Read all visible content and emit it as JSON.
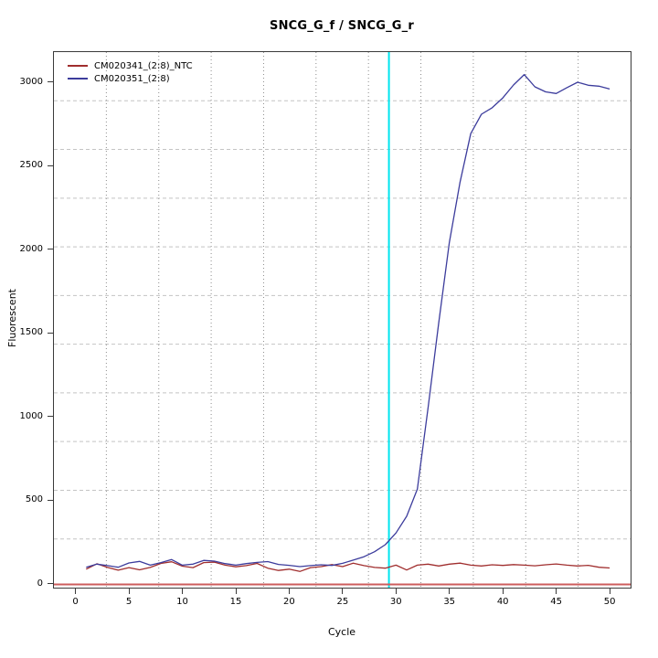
{
  "chart_data": {
    "type": "line",
    "title": "SNCG_G_f / SNCG_G_r",
    "xlabel": "Cycle",
    "ylabel": "Fluorescent",
    "x_ticks": [
      0,
      5,
      10,
      15,
      20,
      25,
      30,
      35,
      40,
      45,
      50
    ],
    "y_ticks": [
      0,
      500,
      1000,
      1500,
      2000,
      2500,
      3000
    ],
    "xlim": [
      -2.02,
      51.96
    ],
    "ylim": [
      -24.6,
      3177.6
    ],
    "grid": {
      "nx": 11,
      "ny": 11,
      "vertical_style": "dotted",
      "horizontal_style": "dashed"
    },
    "legend_position": "top-left",
    "x": [
      1,
      2,
      3,
      4,
      5,
      6,
      7,
      8,
      9,
      10,
      11,
      12,
      13,
      14,
      15,
      16,
      17,
      18,
      19,
      20,
      21,
      22,
      23,
      24,
      25,
      26,
      27,
      28,
      29,
      30,
      31,
      32,
      33,
      34,
      35,
      36,
      37,
      38,
      39,
      40,
      41,
      42,
      43,
      44,
      45,
      46,
      47,
      48,
      49,
      50
    ],
    "series": [
      {
        "name": "CM020341_(2:8)_NTC",
        "color": "#A02E2E",
        "values": [
          86,
          118,
          96,
          80,
          95,
          82,
          96,
          120,
          130,
          104,
          95,
          125,
          128,
          110,
          100,
          107,
          120,
          92,
          78,
          86,
          72,
          95,
          101,
          113,
          101,
          122,
          107,
          96,
          92,
          110,
          81,
          110,
          116,
          105,
          116,
          122,
          110,
          105,
          112,
          108,
          113,
          110,
          106,
          112,
          117,
          110,
          105,
          109,
          97,
          93
        ]
      },
      {
        "name": "CM020351_(2:8)",
        "color": "#3C3C9C",
        "values": [
          97,
          116,
          107,
          97,
          123,
          132,
          110,
          125,
          143,
          110,
          116,
          138,
          134,
          119,
          110,
          119,
          126,
          131,
          114,
          109,
          101,
          107,
          112,
          108,
          121,
          140,
          160,
          190,
          232,
          302,
          402,
          565,
          1050,
          1560,
          2040,
          2400,
          2690,
          2806,
          2845,
          2904,
          2981,
          3043,
          2970,
          2940,
          2930,
          2965,
          2997,
          2979,
          2974,
          2957
        ]
      }
    ],
    "markers": {
      "ct_vertical_line": {
        "x": 29.34,
        "color": "#00E5EE"
      },
      "baseline_horizontal_line": {
        "y": 0,
        "color": "#CD5C5C"
      }
    }
  }
}
